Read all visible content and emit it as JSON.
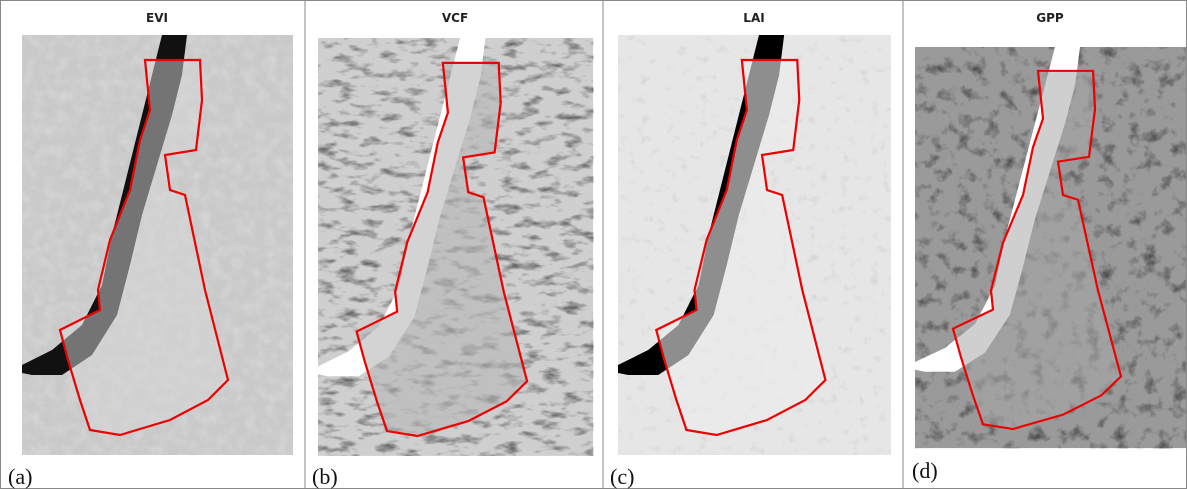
{
  "panels": [
    {
      "title": "EVI",
      "label": "(a)"
    },
    {
      "title": "VCF",
      "label": "(b)"
    },
    {
      "title": "LAI",
      "label": "(c)"
    },
    {
      "title": "GPP",
      "label": "(d)"
    }
  ]
}
